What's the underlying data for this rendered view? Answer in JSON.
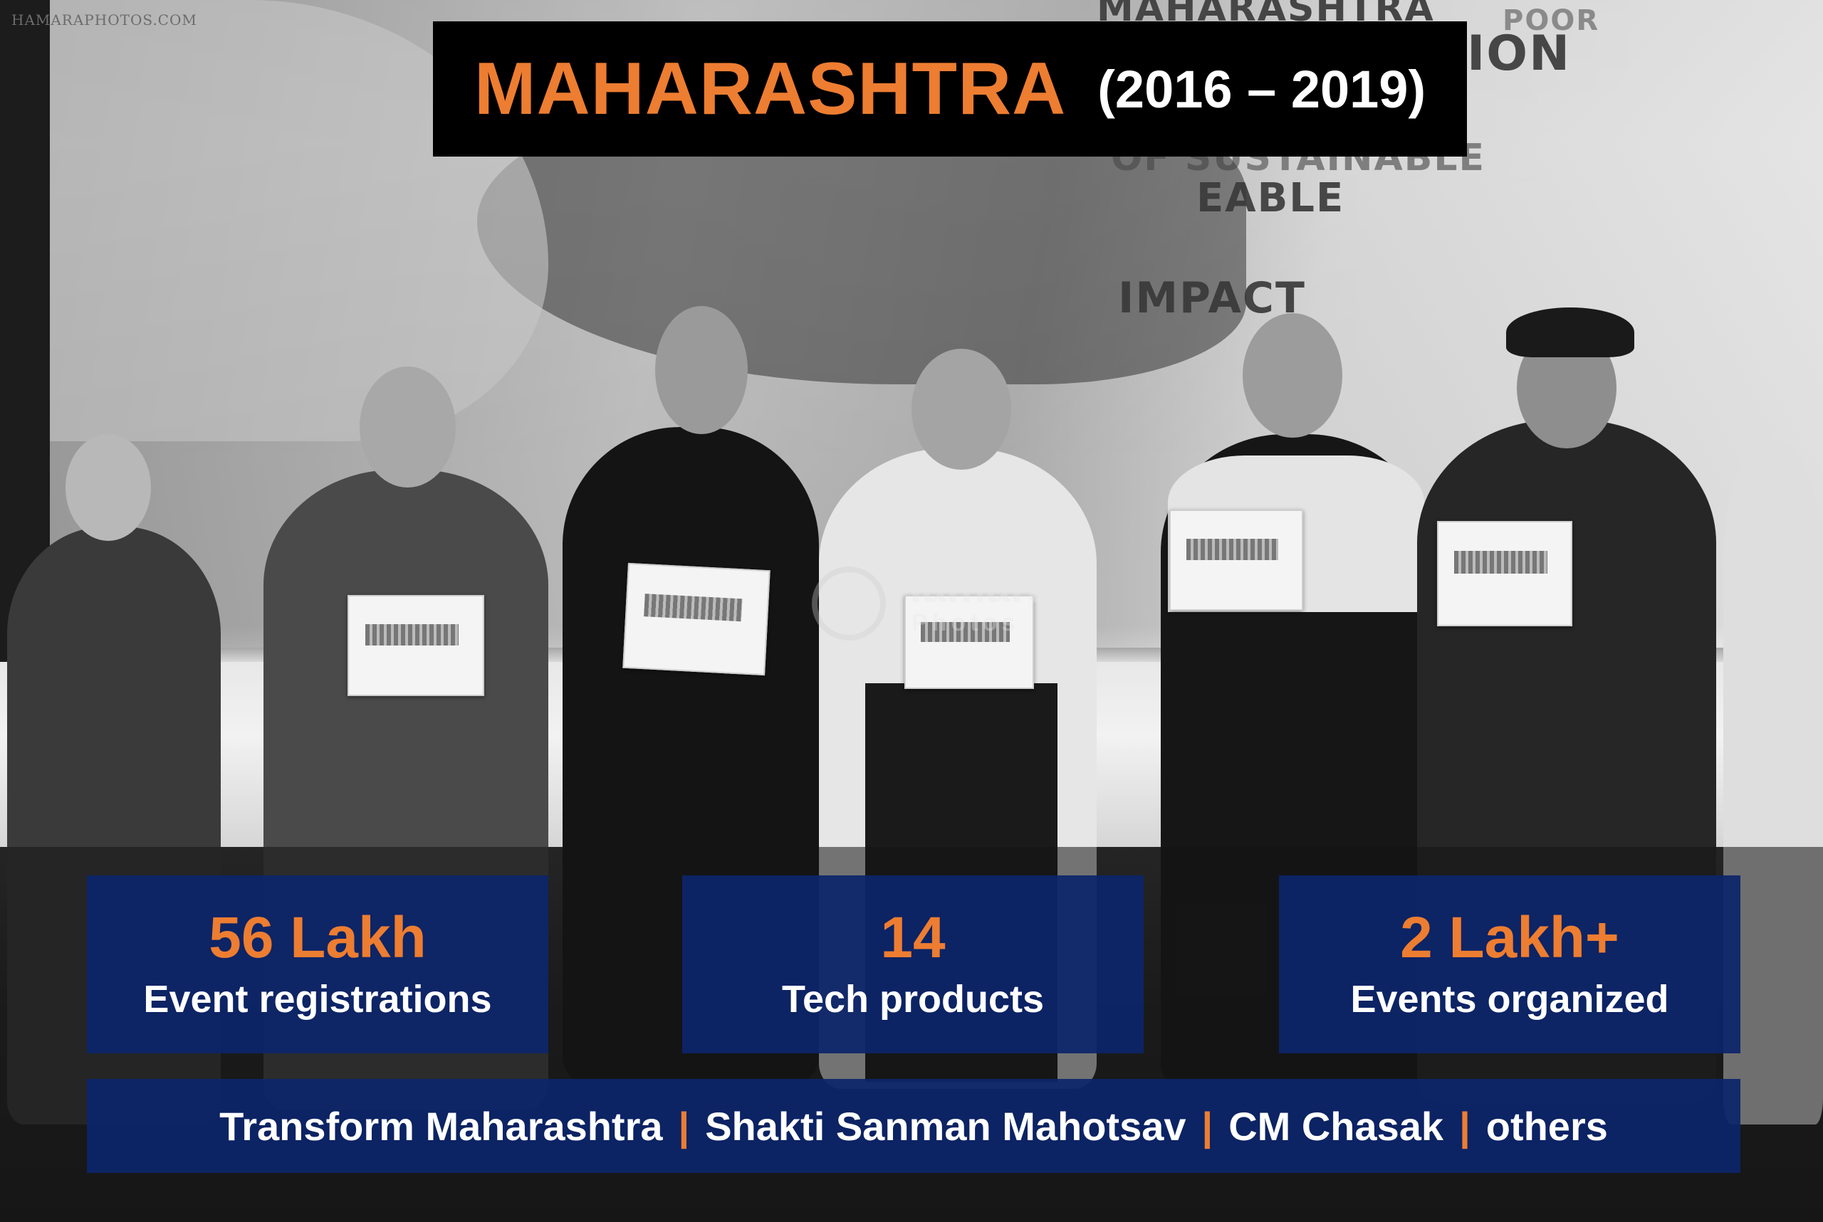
{
  "photo_watermark": "HAMARAPHOTOS.COM",
  "logo_watermark": {
    "line1": "Hamara",
    "line2": "Photos"
  },
  "screen_text": {
    "line1": "MAHARASHTRA",
    "line1_small": "POOR",
    "line2": "ION",
    "line3": "OF SUSTAINABLE",
    "line4": "EABLE",
    "line5": "IMPACT"
  },
  "header": {
    "title": "MAHARASHTRA",
    "years": "(2016 – 2019)"
  },
  "stats": [
    {
      "value": "56 Lakh",
      "label": "Event registrations"
    },
    {
      "value": "14",
      "label": "Tech products"
    },
    {
      "value": "2 Lakh+",
      "label": "Events organized"
    }
  ],
  "programs": {
    "items": [
      "Transform Maharashtra",
      "Shakti Sanman Mahotsav",
      "CM Chasak",
      "others"
    ],
    "separator": "|"
  },
  "colors": {
    "accent_orange": "#ED7D31",
    "panel_navy": "#0C256B",
    "title_background": "#000000",
    "text_white": "#FFFFFF"
  }
}
